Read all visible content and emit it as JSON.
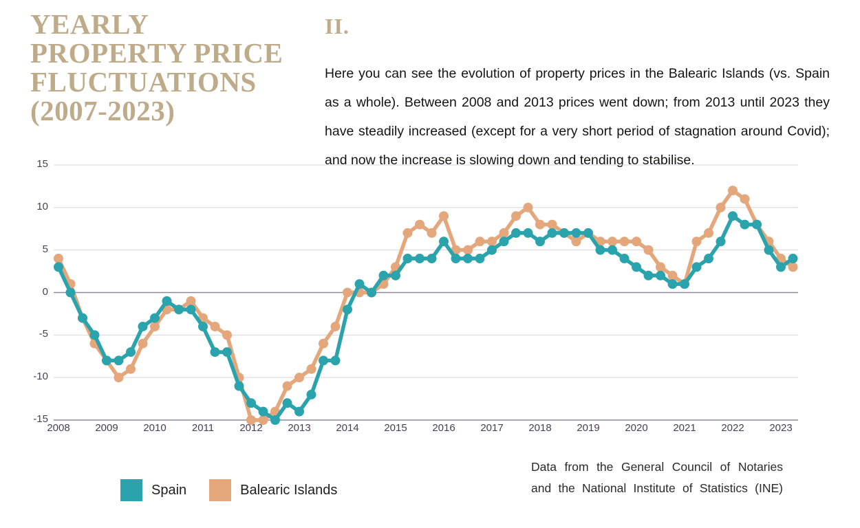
{
  "title": {
    "lines": [
      "YEARLY",
      "PROPERTY PRICE",
      "FLUCTUATIONS",
      "(2007-2023)"
    ]
  },
  "section": {
    "numeral": "II.",
    "paragraph": "Here you can see the evolution of property prices in the Balearic Islands (vs. Spain as a whole). Between 2008 and 2013 prices went down; from 2013 until 2023 they have steadily increased (except for a very short period of stagnation around Covid); and now the increase is slowing down and tending to stabilise."
  },
  "source_note": {
    "line1": "Data from the General Council of Notaries",
    "line2": "and the National Institute of Statistics (INE)"
  },
  "colors": {
    "spain": "#2AA3AC",
    "balearic": "#E4A67B",
    "title_tan": "#BEAB8A",
    "axis_text": "#4A3C55",
    "gridline": "#D8D4DC",
    "zero_line": "#8E8798"
  },
  "legend": [
    {
      "label": "Spain",
      "color": "#2AA3AC"
    },
    {
      "label": "Balearic Islands",
      "color": "#E4A67B"
    }
  ],
  "chart_data": {
    "type": "line",
    "title": "Yearly property price fluctuations (2007-2023), % year-on-year, quarterly points",
    "x_unit": "quarter",
    "x_start": "2008-Q1",
    "x_end": "2023-Q2",
    "x_tick_labels": [
      "2008",
      "2009",
      "2010",
      "2011",
      "2012",
      "2013",
      "2014",
      "2015",
      "2016",
      "2017",
      "2018",
      "2019",
      "2020",
      "2021",
      "2022",
      "2023"
    ],
    "y_ticks": [
      15,
      10,
      5,
      0,
      -5,
      -10,
      -15
    ],
    "ylim": [
      -15,
      15
    ],
    "grid": "horizontal",
    "legend_position": "bottom-left",
    "series": [
      {
        "name": "Spain",
        "color": "#2AA3AC",
        "values": [
          3,
          0,
          -3,
          -5,
          -8,
          -8,
          -7,
          -4,
          -3,
          -1,
          -2,
          -2,
          -4,
          -7,
          -7,
          -11,
          -13,
          -14,
          -15,
          -13,
          -14,
          -12,
          -8,
          -8,
          -2,
          1,
          0,
          2,
          2,
          4,
          4,
          4,
          6,
          4,
          4,
          4,
          5,
          6,
          7,
          7,
          6,
          7,
          7,
          7,
          7,
          5,
          5,
          4,
          3,
          2,
          2,
          1,
          1,
          3,
          4,
          6,
          9,
          8,
          8,
          5,
          3,
          4
        ]
      },
      {
        "name": "Balearic Islands",
        "color": "#E4A67B",
        "values": [
          4,
          1,
          -3,
          -6,
          -8,
          -10,
          -9,
          -6,
          -4,
          -2,
          -2,
          -1,
          -3,
          -4,
          -5,
          -10,
          -15,
          -15,
          -14,
          -11,
          -10,
          -9,
          -6,
          -4,
          0,
          0,
          0,
          1,
          3,
          7,
          8,
          7,
          9,
          5,
          5,
          6,
          6,
          7,
          9,
          10,
          8,
          8,
          7,
          6,
          7,
          6,
          6,
          6,
          6,
          5,
          3,
          2,
          1,
          6,
          7,
          10,
          12,
          11,
          8,
          6,
          4,
          3
        ]
      }
    ]
  }
}
